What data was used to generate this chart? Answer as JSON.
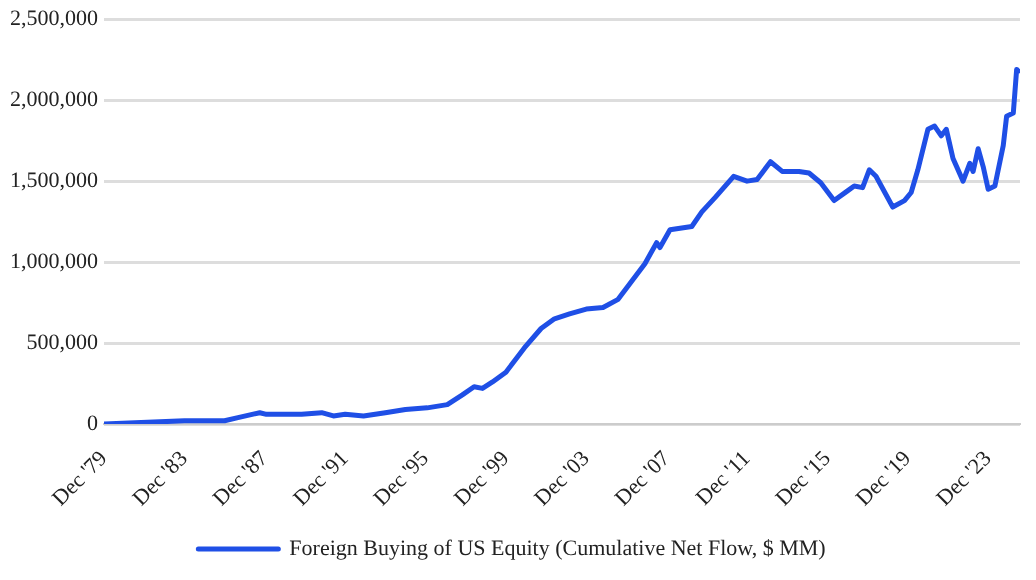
{
  "chart_data": {
    "type": "line",
    "x": [
      "1979-12",
      "1983-12",
      "1985-12",
      "1986-08",
      "1987-09",
      "1988-01",
      "1989-10",
      "1990-10",
      "1991-05",
      "1991-12",
      "1992-11",
      "1993-12",
      "1994-12",
      "1996-01",
      "1997-01",
      "1997-10",
      "1998-05",
      "1998-10",
      "1999-04",
      "1999-12",
      "2000-11",
      "2001-09",
      "2002-05",
      "2003-02",
      "2003-12",
      "2004-10",
      "2005-07",
      "2006-03",
      "2006-11",
      "2007-06",
      "2007-08",
      "2008-02",
      "2009-03",
      "2009-09",
      "2010-05",
      "2011-04",
      "2011-12",
      "2012-06",
      "2013-02",
      "2013-09",
      "2014-07",
      "2015-01",
      "2015-08",
      "2016-04",
      "2016-12",
      "2017-04",
      "2017-09",
      "2018-01",
      "2018-05",
      "2019-03",
      "2019-10",
      "2020-02",
      "2020-06",
      "2020-12",
      "2021-04",
      "2021-08",
      "2021-11",
      "2022-03",
      "2022-09",
      "2023-01",
      "2023-03",
      "2023-06",
      "2023-09",
      "2023-12",
      "2024-04",
      "2024-09",
      "2024-11",
      "2025-03",
      "2025-05",
      "2025-06"
    ],
    "series": [
      {
        "name": "Foreign Buying of US Equity (Cumulative Net Flow, $ MM)",
        "color": "#1f4fe6",
        "values": [
          0,
          20000,
          20000,
          40000,
          70000,
          60000,
          60000,
          70000,
          50000,
          60000,
          50000,
          70000,
          90000,
          100000,
          120000,
          180000,
          230000,
          220000,
          260000,
          320000,
          470000,
          590000,
          650000,
          680000,
          710000,
          720000,
          770000,
          880000,
          990000,
          1120000,
          1090000,
          1200000,
          1220000,
          1310000,
          1400000,
          1530000,
          1500000,
          1510000,
          1620000,
          1560000,
          1560000,
          1550000,
          1490000,
          1380000,
          1440000,
          1470000,
          1460000,
          1570000,
          1530000,
          1340000,
          1380000,
          1430000,
          1570000,
          1820000,
          1840000,
          1780000,
          1820000,
          1640000,
          1500000,
          1610000,
          1560000,
          1700000,
          1590000,
          1450000,
          1470000,
          1720000,
          1900000,
          1920000,
          2190000,
          2180000
        ]
      }
    ],
    "xlim": [
      "1979-12",
      "2025-07"
    ],
    "xticks": [
      {
        "value": "1979-12",
        "label": "Dec '79"
      },
      {
        "value": "1983-12",
        "label": "Dec '83"
      },
      {
        "value": "1987-12",
        "label": "Dec '87"
      },
      {
        "value": "1991-12",
        "label": "Dec '91"
      },
      {
        "value": "1995-12",
        "label": "Dec '95"
      },
      {
        "value": "1999-12",
        "label": "Dec '99"
      },
      {
        "value": "2003-12",
        "label": "Dec '03"
      },
      {
        "value": "2007-12",
        "label": "Dec '07"
      },
      {
        "value": "2011-12",
        "label": "Dec '11"
      },
      {
        "value": "2015-12",
        "label": "Dec '15"
      },
      {
        "value": "2019-12",
        "label": "Dec '19"
      },
      {
        "value": "2023-12",
        "label": "Dec '23"
      }
    ],
    "ylim": [
      0,
      2500000
    ],
    "yticks": [
      {
        "value": 0,
        "label": "0"
      },
      {
        "value": 500000,
        "label": "500,000"
      },
      {
        "value": 1000000,
        "label": "1,000,000"
      },
      {
        "value": 1500000,
        "label": "1,500,000"
      },
      {
        "value": 2000000,
        "label": "2,000,000"
      },
      {
        "value": 2500000,
        "label": "2,500,000"
      }
    ],
    "grid": "y",
    "legend": "bottom",
    "marker": "none",
    "line_style": "solid"
  }
}
